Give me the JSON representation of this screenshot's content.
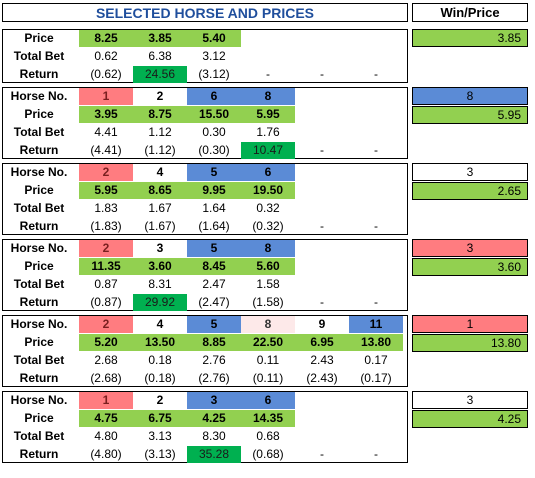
{
  "header": {
    "title": "SELECTED HORSE AND PRICES",
    "win_price_title": "Win/Price"
  },
  "colors": {
    "red": "#ff7c80",
    "blue": "#5b8bd6",
    "pink": "#fde9e9",
    "green": "#92d050",
    "dark_green": "#00b050"
  },
  "labels": {
    "horse": "Horse No.",
    "price": "Price",
    "total_bet": "Total Bet",
    "return": "Return"
  },
  "races": [
    {
      "show_horse_row": false,
      "horses": [],
      "prices": [
        "8.25",
        "3.85",
        "5.40"
      ],
      "total_bets": [
        "0.62",
        "6.38",
        "3.12"
      ],
      "returns": [
        "(0.62)",
        "24.56",
        "(3.12)",
        "-",
        "-",
        "-"
      ],
      "winning_column": 1,
      "win_horse": "",
      "win_horse_color": "",
      "win_price": "3.85"
    },
    {
      "show_horse_row": true,
      "horses": [
        {
          "no": "1",
          "color": "red"
        },
        {
          "no": "2",
          "color": "white"
        },
        {
          "no": "6",
          "color": "blue"
        },
        {
          "no": "8",
          "color": "blue"
        }
      ],
      "prices": [
        "3.95",
        "8.75",
        "15.50",
        "5.95"
      ],
      "total_bets": [
        "4.41",
        "1.12",
        "0.30",
        "1.76"
      ],
      "returns": [
        "(4.41)",
        "(1.12)",
        "(0.30)",
        "10.47",
        "-",
        "-"
      ],
      "winning_column": 3,
      "win_horse": "8",
      "win_horse_color": "blue",
      "win_price": "5.95"
    },
    {
      "show_horse_row": true,
      "horses": [
        {
          "no": "2",
          "color": "red"
        },
        {
          "no": "4",
          "color": "white"
        },
        {
          "no": "5",
          "color": "blue"
        },
        {
          "no": "6",
          "color": "blue"
        }
      ],
      "prices": [
        "5.95",
        "8.65",
        "9.95",
        "19.50"
      ],
      "total_bets": [
        "1.83",
        "1.67",
        "1.64",
        "0.32"
      ],
      "returns": [
        "(1.83)",
        "(1.67)",
        "(1.64)",
        "(0.32)",
        "-",
        "-"
      ],
      "winning_column": -1,
      "win_horse": "3",
      "win_horse_color": "white",
      "win_price": "2.65"
    },
    {
      "show_horse_row": true,
      "horses": [
        {
          "no": "2",
          "color": "red"
        },
        {
          "no": "3",
          "color": "white"
        },
        {
          "no": "5",
          "color": "blue"
        },
        {
          "no": "8",
          "color": "blue"
        }
      ],
      "prices": [
        "11.35",
        "3.60",
        "8.45",
        "5.60"
      ],
      "total_bets": [
        "0.87",
        "8.31",
        "2.47",
        "1.58"
      ],
      "returns": [
        "(0.87)",
        "29.92",
        "(2.47)",
        "(1.58)",
        "-",
        "-"
      ],
      "winning_column": 1,
      "win_horse": "3",
      "win_horse_color": "red",
      "win_price": "3.60"
    },
    {
      "show_horse_row": true,
      "horses": [
        {
          "no": "2",
          "color": "red"
        },
        {
          "no": "4",
          "color": "white"
        },
        {
          "no": "5",
          "color": "blue"
        },
        {
          "no": "8",
          "color": "pink"
        },
        {
          "no": "9",
          "color": "white"
        },
        {
          "no": "11",
          "color": "blue"
        }
      ],
      "prices": [
        "5.20",
        "13.50",
        "8.85",
        "22.50",
        "6.95",
        "13.80"
      ],
      "total_bets": [
        "2.68",
        "0.18",
        "2.76",
        "0.11",
        "2.43",
        "0.17"
      ],
      "returns": [
        "(2.68)",
        "(0.18)",
        "(2.76)",
        "(0.11)",
        "(2.43)",
        "(0.17)"
      ],
      "winning_column": -1,
      "win_horse": "1",
      "win_horse_color": "red",
      "win_price": "13.80"
    },
    {
      "show_horse_row": true,
      "horses": [
        {
          "no": "1",
          "color": "red"
        },
        {
          "no": "2",
          "color": "white"
        },
        {
          "no": "3",
          "color": "blue"
        },
        {
          "no": "6",
          "color": "blue"
        }
      ],
      "prices": [
        "4.75",
        "6.75",
        "4.25",
        "14.35"
      ],
      "total_bets": [
        "4.80",
        "3.13",
        "8.30",
        "0.68"
      ],
      "returns": [
        "(4.80)",
        "(3.13)",
        "35.28",
        "(0.68)",
        "-",
        "-"
      ],
      "winning_column": 2,
      "win_horse": "3",
      "win_horse_color": "white",
      "win_price": "4.25"
    }
  ]
}
